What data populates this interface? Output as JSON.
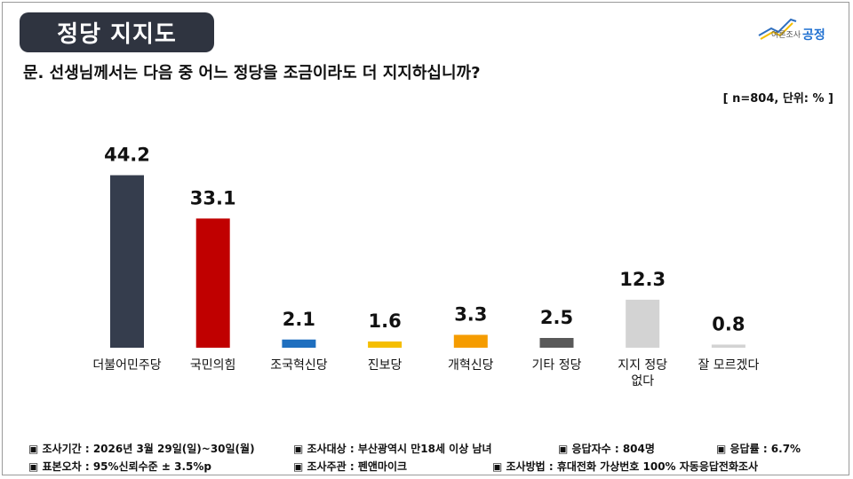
{
  "header": {
    "title": "정당 지지도",
    "logo": {
      "small_text": "여론조사",
      "brand": "공정"
    },
    "question": "문. 선생님께서는 다음 중 어느 정당을 조금이라도 더 지지하십니까?",
    "note": "[ n=804, 단위: % ]"
  },
  "chart_data": {
    "type": "bar",
    "title": "정당 지지도",
    "xlabel": "",
    "ylabel": "",
    "ylim": [
      0,
      50
    ],
    "categories": [
      "더불어민주당",
      "국민의힘",
      "조국혁신당",
      "진보당",
      "개혁신당",
      "기타 정당",
      "지지 정당 없다",
      "잘 모르겠다"
    ],
    "category_lines": [
      [
        "더불어민주당"
      ],
      [
        "국민의힘"
      ],
      [
        "조국혁신당"
      ],
      [
        "진보당"
      ],
      [
        "개혁신당"
      ],
      [
        "기타 정당"
      ],
      [
        "지지 정당",
        "없다"
      ],
      [
        "잘 모르겠다"
      ]
    ],
    "values": [
      44.2,
      33.1,
      2.1,
      1.6,
      3.3,
      2.5,
      12.3,
      0.8
    ],
    "value_labels": [
      "44.2",
      "33.1",
      "2.1",
      "1.6",
      "3.3",
      "2.5",
      "12.3",
      "0.8"
    ],
    "colors": [
      "#353d4d",
      "#c00000",
      "#1f6fbf",
      "#f5be00",
      "#f59c00",
      "#595959",
      "#d3d3d3",
      "#d3d3d3"
    ],
    "grid": false,
    "legend": "none"
  },
  "footer": {
    "row1": [
      "▣ 조사기간 : 2026년 3월 29일(일)~30일(월)",
      "▣ 조사대상 : 부산광역시 만18세 이상 남녀",
      "▣ 응답자수 : 804명",
      "▣ 응답률 : 6.7%"
    ],
    "row2": [
      "▣ 표본오차 : 95%신뢰수준 ± 3.5%p",
      "▣ 조사주관 : 펜앤마이크",
      "▣ 조사방법 : 휴대전화 가상번호 100% 자동응답전화조사"
    ]
  }
}
